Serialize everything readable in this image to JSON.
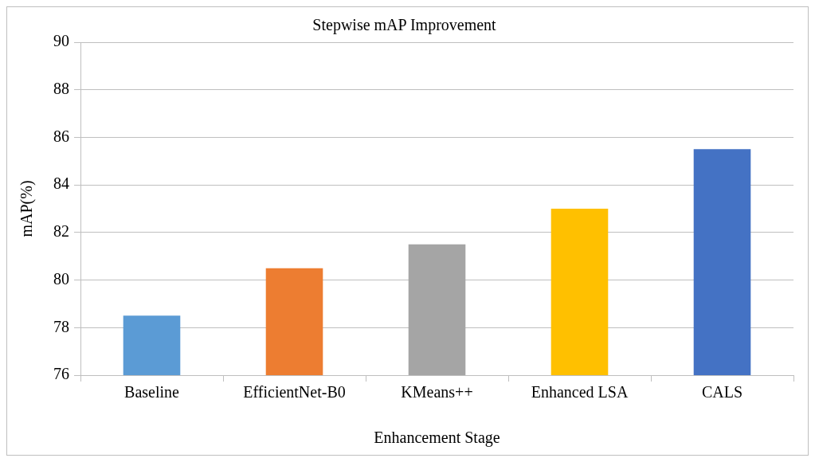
{
  "chart_data": {
    "type": "bar",
    "title": "Stepwise mAP Improvement",
    "xlabel": "Enhancement Stage",
    "ylabel": "mAP(%)",
    "categories": [
      "Baseline",
      "EfficientNet-B0",
      "KMeans++",
      "Enhanced LSA",
      "CALS"
    ],
    "values": [
      78.5,
      80.5,
      81.5,
      83.0,
      85.5
    ],
    "colors": [
      "#5b9bd5",
      "#ed7d31",
      "#a5a5a5",
      "#ffc000",
      "#4472c4"
    ],
    "ylim": [
      76,
      90
    ],
    "yticks": [
      76,
      78,
      80,
      82,
      84,
      86,
      88,
      90
    ],
    "grid": "y",
    "legend": false
  }
}
